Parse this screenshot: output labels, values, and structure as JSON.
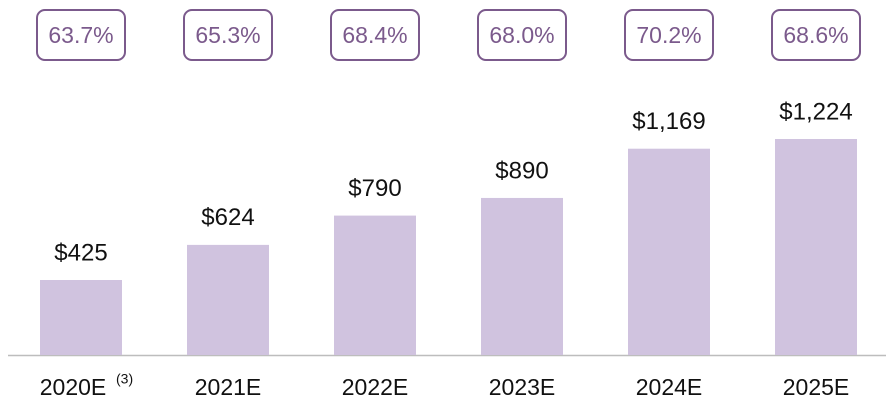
{
  "chart_data": {
    "type": "bar",
    "categories": [
      "2020E",
      "2021E",
      "2022E",
      "2023E",
      "2024E",
      "2025E"
    ],
    "category_superscripts": [
      "(3)",
      null,
      null,
      null,
      null,
      null
    ],
    "values": [
      425,
      624,
      790,
      890,
      1169,
      1224
    ],
    "value_labels": [
      "$425",
      "$624",
      "$790",
      "$890",
      "$1,169",
      "$1,224"
    ],
    "color": "#d0c3df",
    "margin_values": [
      63.7,
      65.3,
      68.4,
      68.0,
      70.2,
      68.6
    ],
    "margin_labels": [
      "63.7%",
      "65.3%",
      "68.4%",
      "68.0%",
      "70.2%",
      "68.6%"
    ],
    "margin_color": "#7b5a8c"
  }
}
